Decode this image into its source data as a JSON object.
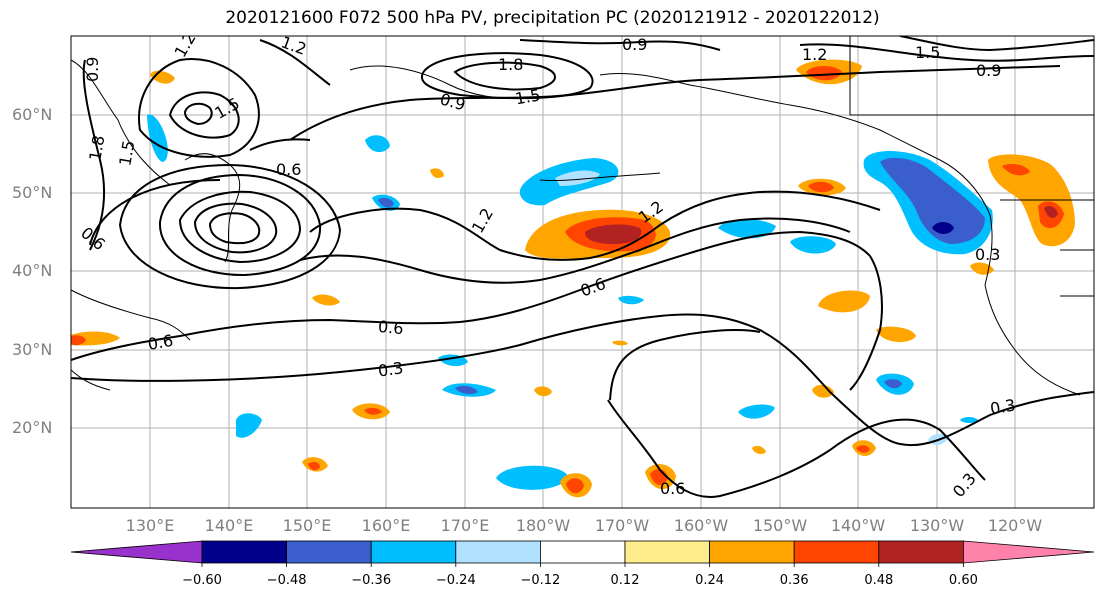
{
  "title": "2020121600 F072 500 hPa PV, precipitation PC (2020121912 - 2020122012)",
  "lat_labels": [
    "60°N",
    "50°N",
    "40°N",
    "30°N",
    "20°N"
  ],
  "lon_labels": [
    "130°E",
    "140°E",
    "150°E",
    "160°E",
    "170°E",
    "180°W",
    "170°W",
    "160°W",
    "150°W",
    "140°W",
    "130°W",
    "120°W"
  ],
  "colorbar": {
    "ticks": [
      "−0.60",
      "−0.48",
      "−0.36",
      "−0.24",
      "−0.12",
      "0.12",
      "0.24",
      "0.36",
      "0.48",
      "0.60"
    ],
    "colors": [
      "#9932cc",
      "#00008b",
      "#3a5fcd",
      "#00bfff",
      "#b0e2ff",
      "#ffffff",
      "#ffec8b",
      "#ffa500",
      "#ff4500",
      "#b22222",
      "#ff82ab"
    ]
  },
  "contour_labels": [
    "1.2",
    "1.2",
    "0.9",
    "1.8",
    "1.5",
    "0.9",
    "1.2",
    "1.5",
    "0.9",
    "0.9",
    "1.5",
    "1.8",
    "1.5",
    "0.6",
    "1.2",
    "1.2",
    "0.6",
    "0.6",
    "0.6",
    "0.6",
    "0.3",
    "0.3",
    "0.3",
    "0.3",
    "0.6"
  ]
}
